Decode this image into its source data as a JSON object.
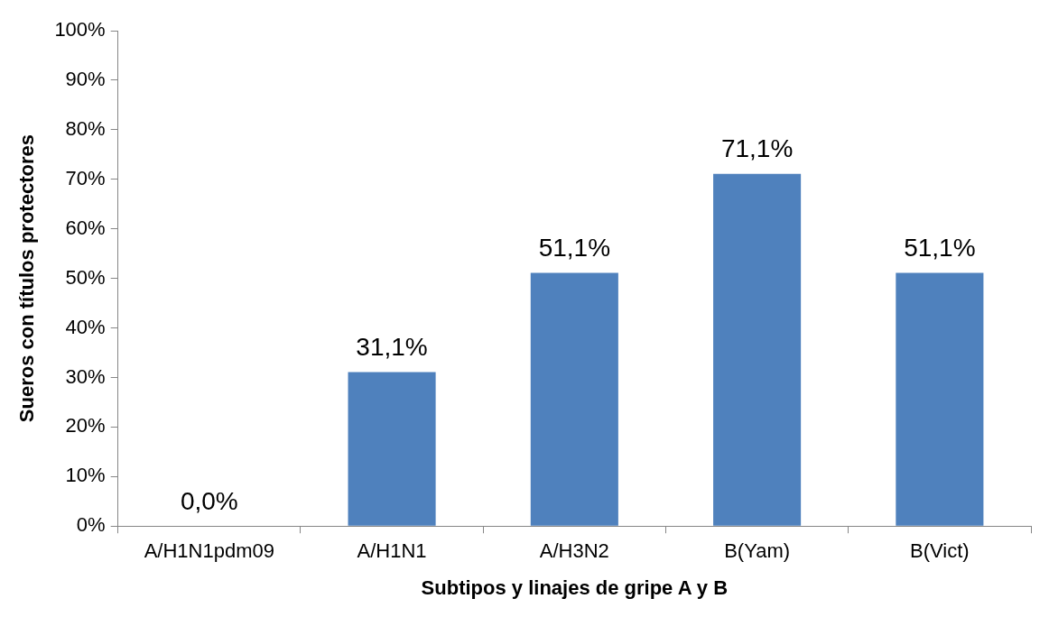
{
  "chart_data": {
    "type": "bar",
    "xlabel": "Subtipos y linajes de gripe A y B",
    "ylabel": "Sueros con títulos protectores",
    "categories": [
      "A/H1N1pdm09",
      "A/H1N1",
      "A/H3N2",
      "B(Yam)",
      "B(Vict)"
    ],
    "values": [
      0,
      31.1,
      51.1,
      71.1,
      51.1
    ],
    "value_labels": [
      "0,0%",
      "31,1%",
      "51,1%",
      "71,1%",
      "51,1%"
    ],
    "color": "#4f81bd",
    "ylim": [
      0,
      100
    ],
    "yticks": [
      {
        "value": 0,
        "label": "0%"
      },
      {
        "value": 10,
        "label": "10%"
      },
      {
        "value": 20,
        "label": "20%"
      },
      {
        "value": 30,
        "label": "30%"
      },
      {
        "value": 40,
        "label": "40%"
      },
      {
        "value": 50,
        "label": "50%"
      },
      {
        "value": 60,
        "label": "60%"
      },
      {
        "value": 70,
        "label": "70%"
      },
      {
        "value": 80,
        "label": "80%"
      },
      {
        "value": 90,
        "label": "90%"
      },
      {
        "value": 100,
        "label": "100%"
      }
    ],
    "grid": false,
    "legend": false
  }
}
